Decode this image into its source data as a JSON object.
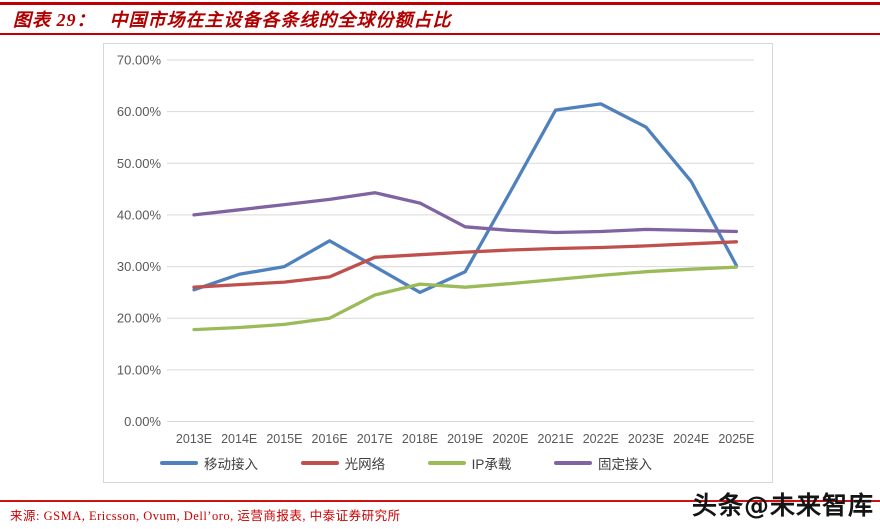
{
  "header": {
    "title_prefix": "图表 29：",
    "title": "中国市场在主设备各条线的全球份额占比",
    "accent_color": "#c00000"
  },
  "footer": {
    "source": "来源: GSMA, Ericsson, Ovum, Dell’oro, 运营商报表, 中泰证券研究所",
    "watermark": "头条@未来智库"
  },
  "chart_data": {
    "type": "line",
    "title": "中国市场在主设备各条线的全球份额占比",
    "categories": [
      "2013E",
      "2014E",
      "2015E",
      "2016E",
      "2017E",
      "2018E",
      "2019E",
      "2020E",
      "2021E",
      "2022E",
      "2023E",
      "2024E",
      "2025E"
    ],
    "series": [
      {
        "name": "移动接入",
        "color": "#4F81BD",
        "values": [
          25.5,
          28.5,
          30.0,
          35.0,
          30.0,
          25.0,
          29.0,
          44.5,
          60.3,
          61.5,
          57.0,
          46.5,
          30.2
        ]
      },
      {
        "name": "光网络",
        "color": "#C0504D",
        "values": [
          26.0,
          26.5,
          27.0,
          28.0,
          31.8,
          32.3,
          32.8,
          33.2,
          33.5,
          33.7,
          34.0,
          34.4,
          34.8
        ]
      },
      {
        "name": "IP承载",
        "color": "#9BBB59",
        "values": [
          17.8,
          18.2,
          18.8,
          20.0,
          24.5,
          26.6,
          26.0,
          26.7,
          27.5,
          28.3,
          29.0,
          29.5,
          29.9
        ]
      },
      {
        "name": "固定接入",
        "color": "#8064A2",
        "values": [
          40.0,
          41.0,
          42.0,
          43.0,
          44.3,
          42.3,
          37.7,
          37.0,
          36.6,
          36.8,
          37.2,
          37.0,
          36.8
        ]
      }
    ],
    "xlabel": "",
    "ylabel": "",
    "ylim": [
      0,
      70
    ],
    "yticks": [
      {
        "v": 0,
        "label": "0.00%"
      },
      {
        "v": 10,
        "label": "10.00%"
      },
      {
        "v": 20,
        "label": "20.00%"
      },
      {
        "v": 30,
        "label": "30.00%"
      },
      {
        "v": 40,
        "label": "40.00%"
      },
      {
        "v": 50,
        "label": "50.00%"
      },
      {
        "v": 60,
        "label": "60.00%"
      },
      {
        "v": 70,
        "label": "70.00%"
      }
    ],
    "grid": true,
    "legend_position": "bottom"
  }
}
